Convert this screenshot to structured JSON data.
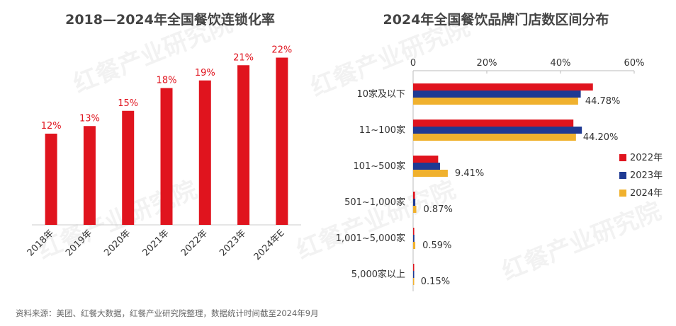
{
  "watermark_text": "红餐产业研究院",
  "source_note": "资料来源：美团、红餐大数据，红餐产业研究院整理，数据统计时间截至2024年9月",
  "chart_data": [
    {
      "type": "bar",
      "title": "2018—2024年全国餐饮连锁化率",
      "categories": [
        "2018年",
        "2019年",
        "2020年",
        "2021年",
        "2022年",
        "2023年",
        "2024年E"
      ],
      "values": [
        12,
        13,
        15,
        18,
        19,
        21,
        22
      ],
      "value_labels": [
        "12%",
        "13%",
        "15%",
        "18%",
        "19%",
        "21%",
        "22%"
      ],
      "unit": "%",
      "ylim": [
        0,
        24
      ],
      "color": "#e0141e",
      "grid": false
    },
    {
      "type": "bar",
      "orientation": "horizontal",
      "title": "2024年全国餐饮品牌门店数区间分布",
      "categories": [
        "10家及以下",
        "11~100家",
        "101~500家",
        "501~1,000家",
        "1,001~5,000家",
        "5,000家以上"
      ],
      "series": [
        {
          "name": "2022年",
          "color": "#e0141e",
          "values": [
            48.8,
            43.5,
            6.8,
            0.5,
            0.3,
            0.1
          ]
        },
        {
          "name": "2023年",
          "color": "#1f3a93",
          "values": [
            45.5,
            45.8,
            7.3,
            0.6,
            0.35,
            0.1
          ]
        },
        {
          "name": "2024年",
          "color": "#f0b12e",
          "values": [
            44.78,
            44.2,
            9.41,
            0.87,
            0.59,
            0.15
          ]
        }
      ],
      "value_labels": [
        "44.78%",
        "44.20%",
        "9.41%",
        "0.87%",
        "0.59%",
        "0.15%"
      ],
      "x_ticks": [
        "0",
        "20%",
        "40%",
        "60%"
      ],
      "xlim": [
        0,
        60
      ],
      "legend_position": "right",
      "grid": false
    }
  ]
}
